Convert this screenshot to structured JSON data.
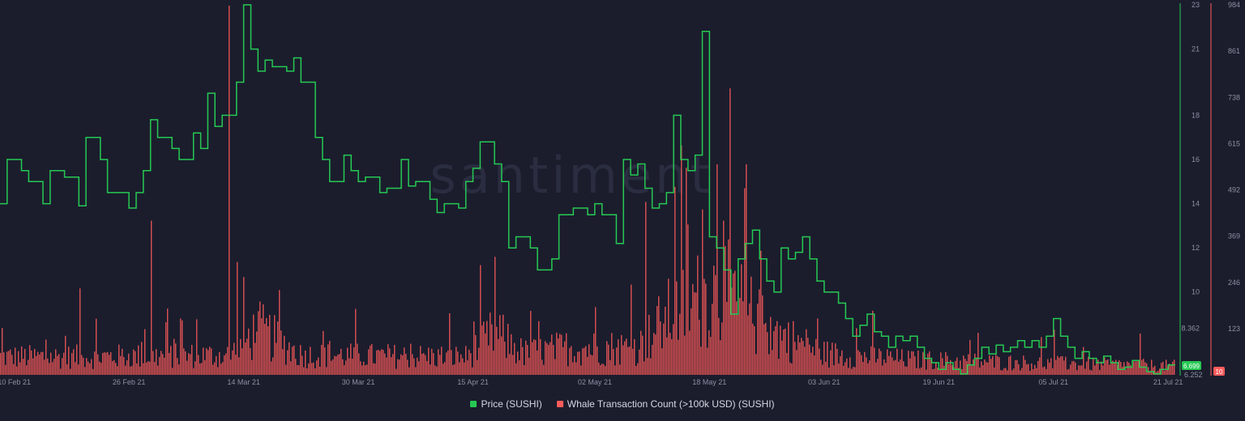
{
  "app": {
    "watermark": "santiment"
  },
  "colors": {
    "background": "#1b1d2d",
    "price": "#26c953",
    "whale": "#ff5b5b",
    "axis_text": "#8c90a3"
  },
  "legend": [
    {
      "label": "Price (SUSHI)",
      "color": "#26c953"
    },
    {
      "label": "Whale Transaction Count (>100k USD) (SUSHI)",
      "color": "#ff5b5b"
    }
  ],
  "chart_data": {
    "type": "line",
    "x_tick_labels": [
      "10 Feb 21",
      "26 Feb 21",
      "14 Mar 21",
      "30 Mar 21",
      "15 Apr 21",
      "02 May 21",
      "18 May 21",
      "03 Jun 21",
      "19 Jun 21",
      "05 Jul 21",
      "21 Jul 21"
    ],
    "x_range": [
      "2021-02-08",
      "2021-07-22"
    ],
    "y_left_ticks": [],
    "y_price_ticks": [
      "23",
      "21",
      "18",
      "16",
      "14",
      "12",
      "10",
      "8.362"
    ],
    "y_price_range": [
      6.252,
      23
    ],
    "price_bottom_label": "6.252",
    "price_current": "6.699",
    "y_whale_ticks": [
      "984",
      "861",
      "738",
      "615",
      "492",
      "369",
      "246",
      "123"
    ],
    "y_whale_range": [
      0,
      984
    ],
    "whale_current": "10",
    "series": [
      {
        "name": "Price (SUSHI)",
        "axis": "right-1",
        "color": "#26c953",
        "style": "step",
        "points": [
          [
            "2021-02-08",
            14.0
          ],
          [
            "2021-02-09",
            16.0
          ],
          [
            "2021-02-11",
            15.5
          ],
          [
            "2021-02-12",
            15.0
          ],
          [
            "2021-02-14",
            14.0
          ],
          [
            "2021-02-15",
            15.5
          ],
          [
            "2021-02-17",
            15.2
          ],
          [
            "2021-02-19",
            13.9
          ],
          [
            "2021-02-20",
            17.0
          ],
          [
            "2021-02-22",
            16.0
          ],
          [
            "2021-02-23",
            14.5
          ],
          [
            "2021-02-26",
            13.8
          ],
          [
            "2021-02-27",
            14.5
          ],
          [
            "2021-02-28",
            15.5
          ],
          [
            "2021-03-01",
            17.8
          ],
          [
            "2021-03-02",
            17.0
          ],
          [
            "2021-03-04",
            16.5
          ],
          [
            "2021-03-05",
            16.0
          ],
          [
            "2021-03-07",
            17.2
          ],
          [
            "2021-03-08",
            16.5
          ],
          [
            "2021-03-09",
            19.0
          ],
          [
            "2021-03-10",
            17.5
          ],
          [
            "2021-03-11",
            18.0
          ],
          [
            "2021-03-13",
            19.5
          ],
          [
            "2021-03-14",
            23.0
          ],
          [
            "2021-03-15",
            21.0
          ],
          [
            "2021-03-16",
            20.0
          ],
          [
            "2021-03-17",
            20.5
          ],
          [
            "2021-03-18",
            20.2
          ],
          [
            "2021-03-20",
            20.0
          ],
          [
            "2021-03-21",
            20.6
          ],
          [
            "2021-03-22",
            19.5
          ],
          [
            "2021-03-24",
            17.0
          ],
          [
            "2021-03-25",
            16.0
          ],
          [
            "2021-03-26",
            15.0
          ],
          [
            "2021-03-28",
            16.2
          ],
          [
            "2021-03-29",
            15.5
          ],
          [
            "2021-03-30",
            15.0
          ],
          [
            "2021-03-31",
            15.2
          ],
          [
            "2021-04-02",
            14.5
          ],
          [
            "2021-04-03",
            14.7
          ],
          [
            "2021-04-05",
            16.0
          ],
          [
            "2021-04-06",
            14.8
          ],
          [
            "2021-04-07",
            15.0
          ],
          [
            "2021-04-09",
            14.2
          ],
          [
            "2021-04-10",
            13.6
          ],
          [
            "2021-04-11",
            14.0
          ],
          [
            "2021-04-13",
            13.8
          ],
          [
            "2021-04-14",
            15.0
          ],
          [
            "2021-04-15",
            15.6
          ],
          [
            "2021-04-16",
            16.8
          ],
          [
            "2021-04-18",
            15.8
          ],
          [
            "2021-04-19",
            15.0
          ],
          [
            "2021-04-20",
            12.0
          ],
          [
            "2021-04-21",
            12.5
          ],
          [
            "2021-04-23",
            12.0
          ],
          [
            "2021-04-24",
            11.0
          ],
          [
            "2021-04-26",
            11.5
          ],
          [
            "2021-04-27",
            13.5
          ],
          [
            "2021-04-29",
            13.8
          ],
          [
            "2021-05-01",
            13.5
          ],
          [
            "2021-05-02",
            14.0
          ],
          [
            "2021-05-03",
            13.5
          ],
          [
            "2021-05-05",
            12.2
          ],
          [
            "2021-05-06",
            16.0
          ],
          [
            "2021-05-07",
            15.3
          ],
          [
            "2021-05-08",
            15.8
          ],
          [
            "2021-05-09",
            14.7
          ],
          [
            "2021-05-10",
            13.8
          ],
          [
            "2021-05-11",
            14.0
          ],
          [
            "2021-05-12",
            14.5
          ],
          [
            "2021-05-13",
            18.0
          ],
          [
            "2021-05-14",
            16.0
          ],
          [
            "2021-05-15",
            15.5
          ],
          [
            "2021-05-16",
            16.2
          ],
          [
            "2021-05-17",
            21.8
          ],
          [
            "2021-05-18",
            12.5
          ],
          [
            "2021-05-19",
            12.0
          ],
          [
            "2021-05-20",
            11.0
          ],
          [
            "2021-05-21",
            9.0
          ],
          [
            "2021-05-22",
            11.5
          ],
          [
            "2021-05-23",
            12.2
          ],
          [
            "2021-05-24",
            12.8
          ],
          [
            "2021-05-25",
            11.5
          ],
          [
            "2021-05-26",
            10.5
          ],
          [
            "2021-05-27",
            10.0
          ],
          [
            "2021-05-28",
            12.0
          ],
          [
            "2021-05-29",
            11.5
          ],
          [
            "2021-05-30",
            11.8
          ],
          [
            "2021-05-31",
            12.5
          ],
          [
            "2021-06-01",
            11.5
          ],
          [
            "2021-06-02",
            10.5
          ],
          [
            "2021-06-03",
            10.0
          ],
          [
            "2021-06-05",
            9.5
          ],
          [
            "2021-06-06",
            8.8
          ],
          [
            "2021-06-07",
            8.0
          ],
          [
            "2021-06-08",
            8.5
          ],
          [
            "2021-06-09",
            9.0
          ],
          [
            "2021-06-10",
            8.2
          ],
          [
            "2021-06-11",
            8.0
          ],
          [
            "2021-06-12",
            7.5
          ],
          [
            "2021-06-13",
            8.0
          ],
          [
            "2021-06-14",
            7.8
          ],
          [
            "2021-06-15",
            8.0
          ],
          [
            "2021-06-16",
            7.5
          ],
          [
            "2021-06-17",
            7.0
          ],
          [
            "2021-06-18",
            6.8
          ],
          [
            "2021-06-19",
            6.5
          ],
          [
            "2021-06-20",
            6.8
          ],
          [
            "2021-06-21",
            6.5
          ],
          [
            "2021-06-22",
            6.3
          ],
          [
            "2021-06-23",
            6.7
          ],
          [
            "2021-06-24",
            7.0
          ],
          [
            "2021-06-25",
            7.5
          ],
          [
            "2021-06-26",
            7.2
          ],
          [
            "2021-06-27",
            7.6
          ],
          [
            "2021-06-28",
            7.3
          ],
          [
            "2021-06-29",
            7.5
          ],
          [
            "2021-06-30",
            7.8
          ],
          [
            "2021-07-01",
            7.5
          ],
          [
            "2021-07-02",
            7.8
          ],
          [
            "2021-07-03",
            7.5
          ],
          [
            "2021-07-04",
            8.0
          ],
          [
            "2021-07-05",
            8.8
          ],
          [
            "2021-07-06",
            8.0
          ],
          [
            "2021-07-07",
            7.5
          ],
          [
            "2021-07-08",
            7.0
          ],
          [
            "2021-07-09",
            7.3
          ],
          [
            "2021-07-10",
            7.0
          ],
          [
            "2021-07-11",
            6.8
          ],
          [
            "2021-07-12",
            7.1
          ],
          [
            "2021-07-13",
            6.8
          ],
          [
            "2021-07-14",
            6.5
          ],
          [
            "2021-07-15",
            6.6
          ],
          [
            "2021-07-16",
            6.9
          ],
          [
            "2021-07-17",
            6.6
          ],
          [
            "2021-07-18",
            6.4
          ],
          [
            "2021-07-19",
            6.3
          ],
          [
            "2021-07-20",
            6.5
          ],
          [
            "2021-07-21",
            6.699
          ]
        ]
      },
      {
        "name": "Whale Transaction Count (>100k USD) (SUSHI)",
        "axis": "right-2",
        "color": "#ff5b5b",
        "style": "bar",
        "baseline_profile": [
          [
            "2021-02-08",
            60
          ],
          [
            "2021-02-20",
            60
          ],
          [
            "2021-03-12",
            65
          ],
          [
            "2021-03-16",
            150
          ],
          [
            "2021-03-22",
            65
          ],
          [
            "2021-04-14",
            60
          ],
          [
            "2021-04-18",
            140
          ],
          [
            "2021-04-22",
            70
          ],
          [
            "2021-04-28",
            90
          ],
          [
            "2021-05-08",
            90
          ],
          [
            "2021-05-12",
            190
          ],
          [
            "2021-05-17",
            260
          ],
          [
            "2021-05-20",
            280
          ],
          [
            "2021-05-26",
            150
          ],
          [
            "2021-06-03",
            70
          ],
          [
            "2021-06-15",
            50
          ],
          [
            "2021-07-01",
            40
          ],
          [
            "2021-07-21",
            30
          ]
        ],
        "peaks": [
          [
            "2021-03-12",
            982
          ],
          [
            "2021-03-13",
            300
          ],
          [
            "2021-03-14",
            260
          ],
          [
            "2021-03-05",
            150
          ],
          [
            "2021-02-19",
            230
          ],
          [
            "2021-03-01",
            410
          ],
          [
            "2021-03-03",
            140
          ],
          [
            "2021-04-18",
            280
          ],
          [
            "2021-04-16",
            160
          ],
          [
            "2021-04-23",
            170
          ],
          [
            "2021-05-09",
            460
          ],
          [
            "2021-05-07",
            240
          ],
          [
            "2021-05-13",
            500
          ],
          [
            "2021-05-14",
            610
          ],
          [
            "2021-05-15",
            400
          ],
          [
            "2021-05-17",
            440
          ],
          [
            "2021-05-19",
            560
          ],
          [
            "2021-05-20",
            410
          ],
          [
            "2021-05-23",
            560
          ],
          [
            "2021-05-25",
            330
          ],
          [
            "2021-06-02",
            150
          ],
          [
            "2021-07-05",
            120
          ],
          [
            "2021-07-17",
            110
          ],
          [
            "2021-07-21",
            10
          ]
        ]
      }
    ],
    "grid": false,
    "legend_position": "bottom-center"
  }
}
